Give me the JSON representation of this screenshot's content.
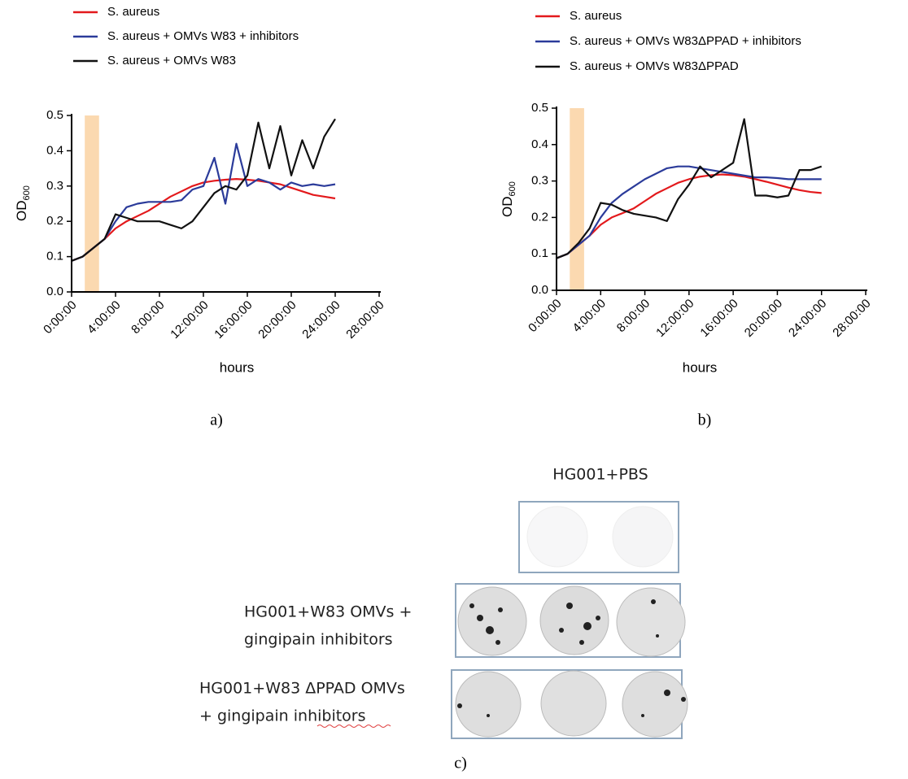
{
  "chart_data": [
    {
      "type": "line",
      "panel_label": "a)",
      "xlabel": "hours",
      "ylabel": "OD",
      "ylabel_sub": "600",
      "xlim": [
        0,
        28
      ],
      "ylim": [
        0,
        0.5
      ],
      "xticks": [
        {
          "value": 0,
          "label": "0:00:00"
        },
        {
          "value": 4,
          "label": "4:00:00"
        },
        {
          "value": 8,
          "label": "8:00:00"
        },
        {
          "value": 12,
          "label": "12:00:00"
        },
        {
          "value": 16,
          "label": "16:00:00"
        },
        {
          "value": 20,
          "label": "20:00:00"
        },
        {
          "value": 24,
          "label": "24:00:00"
        },
        {
          "value": 28,
          "label": "28:00:00"
        }
      ],
      "yticks": [
        {
          "value": 0,
          "label": "0.0"
        },
        0.1,
        0.2,
        0.3,
        0.4,
        0.5
      ],
      "band": [
        1.2,
        2.5
      ],
      "band_color": "#fbd9b0",
      "legend": "top-left",
      "x": [
        0,
        1,
        2,
        3,
        4,
        5,
        6,
        7,
        8,
        9,
        10,
        11,
        12,
        13,
        14,
        15,
        16,
        17,
        18,
        19,
        20,
        21,
        22,
        23,
        24
      ],
      "series": [
        {
          "name": "S. aureus",
          "color": "#e3191c",
          "values": [
            0.088,
            0.1,
            0.125,
            0.15,
            0.18,
            0.2,
            0.215,
            0.23,
            0.25,
            0.27,
            0.285,
            0.3,
            0.31,
            0.315,
            0.318,
            0.32,
            0.318,
            0.315,
            0.31,
            0.305,
            0.295,
            0.285,
            0.275,
            0.27,
            0.265
          ]
        },
        {
          "name": "S. aureus + OMVs W83 +  inhibitors",
          "color": "#2b3b9a",
          "values": [
            0.088,
            0.1,
            0.125,
            0.15,
            0.2,
            0.24,
            0.25,
            0.255,
            0.255,
            0.255,
            0.26,
            0.29,
            0.3,
            0.38,
            0.25,
            0.42,
            0.3,
            0.32,
            0.31,
            0.29,
            0.31,
            0.3,
            0.305,
            0.3,
            0.305
          ]
        },
        {
          "name": "S. aureus + OMVs W83",
          "color": "#111111",
          "values": [
            0.088,
            0.1,
            0.125,
            0.15,
            0.22,
            0.21,
            0.2,
            0.2,
            0.2,
            0.19,
            0.18,
            0.2,
            0.24,
            0.28,
            0.3,
            0.29,
            0.33,
            0.48,
            0.35,
            0.47,
            0.33,
            0.43,
            0.35,
            0.44,
            0.49
          ]
        }
      ]
    },
    {
      "type": "line",
      "panel_label": "b)",
      "xlabel": "hours",
      "ylabel": "OD",
      "ylabel_sub": "600",
      "xlim": [
        0,
        28
      ],
      "ylim": [
        0,
        0.5
      ],
      "xticks": [
        {
          "value": 0,
          "label": "0:00:00"
        },
        {
          "value": 4,
          "label": "4:00:00"
        },
        {
          "value": 8,
          "label": "8:00:00"
        },
        {
          "value": 12,
          "label": "12:00:00"
        },
        {
          "value": 16,
          "label": "16:00:00"
        },
        {
          "value": 20,
          "label": "20:00:00"
        },
        {
          "value": 24,
          "label": "24:00:00"
        },
        {
          "value": 28,
          "label": "28:00:00"
        }
      ],
      "yticks": [
        {
          "value": 0,
          "label": "0.0"
        },
        0.1,
        0.2,
        0.3,
        0.4,
        0.5
      ],
      "band": [
        1.2,
        2.5
      ],
      "band_color": "#fbd9b0",
      "legend": "top-left",
      "x": [
        0,
        1,
        2,
        3,
        4,
        5,
        6,
        7,
        8,
        9,
        10,
        11,
        12,
        13,
        14,
        15,
        16,
        17,
        18,
        19,
        20,
        21,
        22,
        23,
        24
      ],
      "series": [
        {
          "name": "S. aureus",
          "color": "#e3191c",
          "values": [
            0.088,
            0.1,
            0.125,
            0.15,
            0.18,
            0.2,
            0.212,
            0.225,
            0.245,
            0.265,
            0.28,
            0.295,
            0.305,
            0.312,
            0.316,
            0.318,
            0.316,
            0.312,
            0.305,
            0.298,
            0.29,
            0.282,
            0.275,
            0.27,
            0.267
          ]
        },
        {
          "name": "S. aureus + OMVs W83ΔPPAD +  inhibitors",
          "color": "#2b3b9a",
          "values": [
            0.088,
            0.1,
            0.125,
            0.15,
            0.2,
            0.24,
            0.265,
            0.285,
            0.305,
            0.32,
            0.335,
            0.34,
            0.34,
            0.335,
            0.33,
            0.325,
            0.32,
            0.315,
            0.31,
            0.31,
            0.308,
            0.305,
            0.305,
            0.305,
            0.305
          ]
        },
        {
          "name": "S. aureus + OMVs W83ΔPPAD",
          "color": "#111111",
          "values": [
            0.088,
            0.1,
            0.13,
            0.17,
            0.24,
            0.235,
            0.22,
            0.21,
            0.205,
            0.2,
            0.19,
            0.25,
            0.29,
            0.34,
            0.31,
            0.33,
            0.35,
            0.47,
            0.26,
            0.26,
            0.255,
            0.26,
            0.33,
            0.33,
            0.34
          ]
        }
      ]
    }
  ],
  "panel_c": {
    "panel_label": "c)",
    "title": "HG001+PBS",
    "row_labels": [
      [
        "HG001+W83 OMVs +",
        "gingipain inhibitors"
      ],
      [
        "HG001+W83 ΔPPAD OMVs",
        "+ gingipain inhibitors"
      ]
    ]
  }
}
